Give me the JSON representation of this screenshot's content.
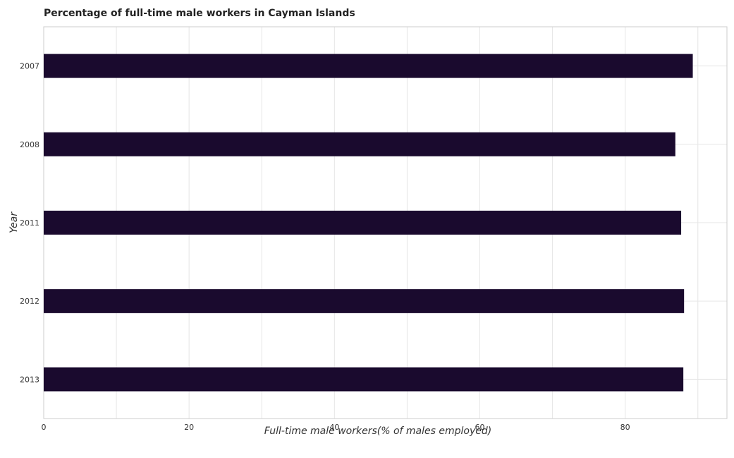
{
  "chart_data": {
    "type": "bar",
    "orientation": "horizontal",
    "title": "Percentage of full-time male workers in Cayman Islands",
    "xlabel": "Full-time male workers(% of males employed)",
    "ylabel": "Year",
    "categories": [
      "2007",
      "2008",
      "2011",
      "2012",
      "2013"
    ],
    "values": [
      89.3,
      86.9,
      87.7,
      88.1,
      88.0
    ],
    "xlim": [
      0,
      94
    ],
    "xticks": [
      0,
      20,
      40,
      60,
      80
    ],
    "grid": true,
    "bar_color": "#1a0a2e"
  }
}
